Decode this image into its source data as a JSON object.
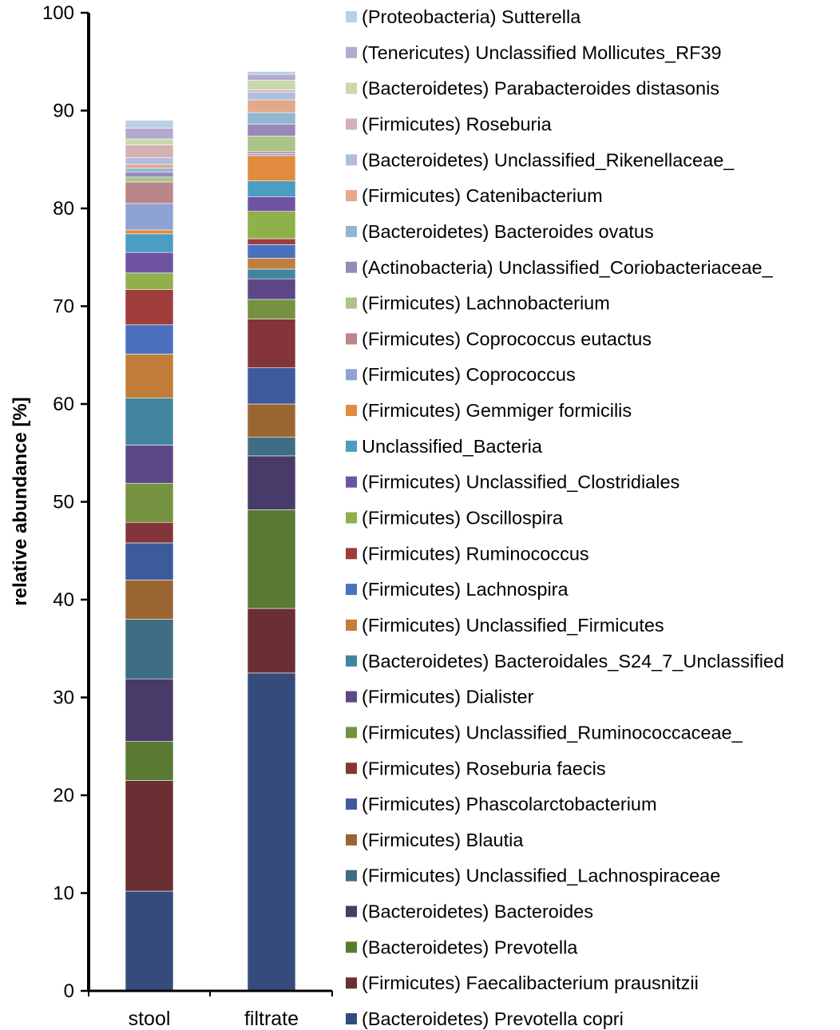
{
  "chart_data": {
    "type": "bar",
    "stacked": true,
    "ylabel": "relative abundance [%]",
    "ylim": [
      0,
      100
    ],
    "yticks": [
      0,
      10,
      20,
      30,
      40,
      50,
      60,
      70,
      80,
      90,
      100
    ],
    "categories": [
      "stool",
      "filtrate"
    ],
    "legend_position": "right",
    "series": [
      {
        "name": "(Bacteroidetes) Prevotella copri",
        "color": "#344c7c",
        "values": [
          10.2,
          32.5
        ]
      },
      {
        "name": "(Firmicutes) Faecalibacterium prausnitzii",
        "color": "#6b2e33",
        "values": [
          11.3,
          6.6
        ]
      },
      {
        "name": "(Bacteroidetes) Prevotella",
        "color": "#5a7a34",
        "values": [
          4.0,
          10.1
        ]
      },
      {
        "name": "(Bacteroidetes) Bacteroides",
        "color": "#483b6a",
        "values": [
          6.4,
          5.5
        ]
      },
      {
        "name": "(Firmicutes) Unclassified_Lachnospiraceae",
        "color": "#3f6e84",
        "values": [
          6.1,
          1.9
        ]
      },
      {
        "name": "(Firmicutes) Blautia",
        "color": "#9a6531",
        "values": [
          4.0,
          3.4
        ]
      },
      {
        "name": "(Firmicutes) Phascolarctobacterium",
        "color": "#3d5b9b",
        "values": [
          3.8,
          3.7
        ]
      },
      {
        "name": "(Firmicutes) Roseburia faecis",
        "color": "#843539",
        "values": [
          2.1,
          5.0
        ]
      },
      {
        "name": "(Firmicutes) Unclassified_Ruminococcaceae_",
        "color": "#74923f",
        "values": [
          4.0,
          2.0
        ]
      },
      {
        "name": "(Firmicutes) Dialister",
        "color": "#5c4886",
        "values": [
          3.9,
          2.1
        ]
      },
      {
        "name": "(Bacteroidetes) Bacteroidales_S24_7_Unclassified",
        "color": "#4285a0",
        "values": [
          4.8,
          1.0
        ]
      },
      {
        "name": "(Firmicutes) Unclassified_Firmicutes",
        "color": "#c07e3a",
        "values": [
          4.5,
          1.1
        ]
      },
      {
        "name": "(Firmicutes) Lachnospira",
        "color": "#4a70be",
        "values": [
          3.0,
          1.4
        ]
      },
      {
        "name": "(Firmicutes) Ruminococcus",
        "color": "#a03c3c",
        "values": [
          3.6,
          0.6
        ]
      },
      {
        "name": "(Firmicutes) Oscillospira",
        "color": "#8fb04a",
        "values": [
          1.7,
          2.8
        ]
      },
      {
        "name": "(Firmicutes) Unclassified_Clostridiales",
        "color": "#6f53a3",
        "values": [
          2.1,
          1.5
        ]
      },
      {
        "name": "Unclassified_Bacteria",
        "color": "#4b9dc1",
        "values": [
          1.9,
          1.6
        ]
      },
      {
        "name": "(Firmicutes) Gemmiger formicilis",
        "color": "#e08b3f",
        "values": [
          0.4,
          2.6
        ]
      },
      {
        "name": "(Firmicutes) Coprococcus",
        "color": "#8ea2d3",
        "values": [
          2.7,
          0.2
        ]
      },
      {
        "name": "(Firmicutes) Coprococcus eutactus",
        "color": "#b98689",
        "values": [
          2.2,
          0.2
        ]
      },
      {
        "name": "(Firmicutes) Lachnobacterium",
        "color": "#a9c486",
        "values": [
          0.5,
          1.6
        ]
      },
      {
        "name": "(Actinobacteria) Unclassified_Coriobacteriaceae_",
        "color": "#9889b9",
        "values": [
          0.5,
          1.2
        ]
      },
      {
        "name": "(Bacteroidetes) Bacteroides ovatus",
        "color": "#91b6d3",
        "values": [
          0.4,
          1.2
        ]
      },
      {
        "name": "(Firmicutes) Catenibacterium",
        "color": "#e2aa8a",
        "values": [
          0.4,
          1.3
        ]
      },
      {
        "name": "(Bacteroidetes) Unclassified_Rikenellaceae_",
        "color": "#b1bddf",
        "values": [
          0.7,
          0.8
        ]
      },
      {
        "name": "(Firmicutes) Roseburia",
        "color": "#d4b1b3",
        "values": [
          1.3,
          0.2
        ]
      },
      {
        "name": "(Bacteroidetes) Parabacteroides distasonis",
        "color": "#c9d8ae",
        "values": [
          0.6,
          1.0
        ]
      },
      {
        "name": "(Tenericutes) Unclassified Mollicutes_RF39",
        "color": "#b4aacd",
        "values": [
          1.1,
          0.6
        ]
      },
      {
        "name": "(Proteobacteria) Sutterella",
        "color": "#b9cfe4",
        "values": [
          0.8,
          0.3
        ]
      }
    ]
  }
}
